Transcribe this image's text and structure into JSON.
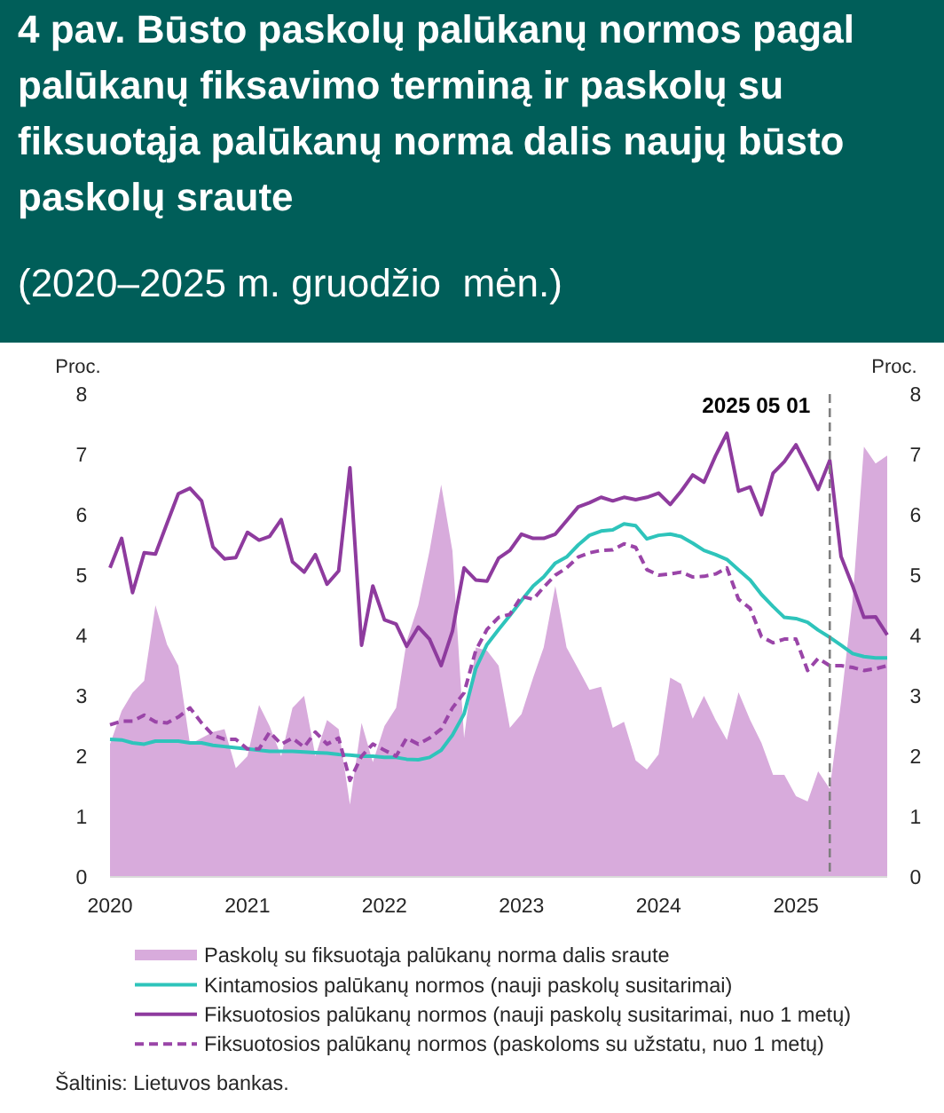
{
  "chart_data": {
    "type": "line",
    "title": "4 pav. Būsto paskolų palūkanų normos pagal palūkanų fiksavimo terminą ir paskolų su fiksuotąja palūkanų norma dalis naujų būsto paskolų sraute",
    "subtitle": "(2020–2025 m. gruodžio  mėn.)",
    "ylabel": "Proc.",
    "y2label": "Proc.",
    "x": [
      "2020-01",
      "2020-02",
      "2020-03",
      "2020-04",
      "2020-05",
      "2020-06",
      "2020-07",
      "2020-08",
      "2020-09",
      "2020-10",
      "2020-11",
      "2020-12",
      "2021-01",
      "2021-02",
      "2021-03",
      "2021-04",
      "2021-05",
      "2021-06",
      "2021-07",
      "2021-08",
      "2021-09",
      "2021-10",
      "2021-11",
      "2021-12",
      "2022-01",
      "2022-02",
      "2022-03",
      "2022-04",
      "2022-05",
      "2022-06",
      "2022-07",
      "2022-08",
      "2022-09",
      "2022-10",
      "2022-11",
      "2022-12",
      "2023-01",
      "2023-02",
      "2023-03",
      "2023-04",
      "2023-05",
      "2023-06",
      "2023-07",
      "2023-08",
      "2023-09",
      "2023-10",
      "2023-11",
      "2023-12",
      "2024-01",
      "2024-02",
      "2024-03",
      "2024-04",
      "2024-05",
      "2024-06",
      "2024-07",
      "2024-08",
      "2024-09",
      "2024-10",
      "2024-11",
      "2024-12",
      "2025-01",
      "2025-02",
      "2025-03",
      "2025-04",
      "2025-05",
      "2025-06",
      "2025-07",
      "2025-08",
      "2025-09"
    ],
    "series": [
      {
        "name": "Paskolų su fiksuotąja palūkanų norma dalis sraute",
        "type": "area",
        "color": "#d8abdc",
        "values": [
          2.2,
          2.75,
          3.05,
          3.25,
          4.5,
          3.85,
          3.5,
          2.2,
          2.3,
          2.4,
          2.45,
          1.8,
          2.0,
          2.85,
          2.5,
          2.0,
          2.8,
          3.0,
          2.0,
          2.6,
          2.45,
          1.2,
          2.55,
          1.9,
          2.5,
          2.8,
          3.9,
          4.5,
          5.4,
          6.5,
          5.4,
          2.3,
          3.8,
          3.75,
          3.5,
          2.47,
          2.7,
          3.3,
          3.8,
          4.82,
          3.8,
          3.45,
          3.1,
          3.15,
          2.47,
          2.57,
          1.93,
          1.78,
          2.03,
          3.3,
          3.2,
          2.62,
          3.0,
          2.6,
          2.27,
          3.06,
          2.6,
          2.22,
          1.69,
          1.69,
          1.34,
          1.25,
          1.75,
          1.46,
          2.9,
          4.6,
          7.13,
          6.85,
          6.98
        ]
      },
      {
        "name": "Kintamosios palūkanų normos (nauji paskolų susitarimai)",
        "color": "#2ec4bb",
        "values": [
          2.28,
          2.27,
          2.22,
          2.2,
          2.25,
          2.25,
          2.25,
          2.22,
          2.22,
          2.18,
          2.16,
          2.14,
          2.12,
          2.1,
          2.08,
          2.08,
          2.08,
          2.07,
          2.06,
          2.05,
          2.03,
          2.02,
          2.0,
          2.0,
          1.98,
          1.98,
          1.95,
          1.94,
          1.98,
          2.1,
          2.35,
          2.7,
          3.45,
          3.85,
          4.1,
          4.33,
          4.58,
          4.82,
          4.97,
          5.2,
          5.3,
          5.5,
          5.66,
          5.73,
          5.75,
          5.85,
          5.82,
          5.6,
          5.66,
          5.68,
          5.64,
          5.53,
          5.41,
          5.34,
          5.26,
          5.09,
          4.92,
          4.68,
          4.48,
          4.3,
          4.28,
          4.22,
          4.09,
          3.97,
          3.84,
          3.7,
          3.65,
          3.63,
          3.63
        ]
      },
      {
        "name": "Fiksuotosios palūkanų normos (nauji paskolų susitarimai, nuo 1 metų)",
        "color": "#8e3b9e",
        "values": [
          5.12,
          5.61,
          4.71,
          5.37,
          5.35,
          5.86,
          6.35,
          6.44,
          6.23,
          5.47,
          5.27,
          5.29,
          5.71,
          5.58,
          5.64,
          5.92,
          5.22,
          5.05,
          5.34,
          4.85,
          5.07,
          6.78,
          3.84,
          4.82,
          4.26,
          4.19,
          3.82,
          4.14,
          3.94,
          3.5,
          4.07,
          5.12,
          4.92,
          4.9,
          5.28,
          5.41,
          5.68,
          5.61,
          5.61,
          5.68,
          5.9,
          6.13,
          6.2,
          6.29,
          6.23,
          6.29,
          6.25,
          6.29,
          6.36,
          6.17,
          6.39,
          6.66,
          6.54,
          6.98,
          7.35,
          6.39,
          6.46,
          6.0,
          6.69,
          6.88,
          7.16,
          6.78,
          6.42,
          6.9,
          5.31,
          4.82,
          4.3,
          4.31,
          4.01
        ]
      },
      {
        "name": "Fiksuotosios palūkanų normos (paskoloms su užstatu, nuo 1 metų)",
        "line_style": "dashed",
        "color": "#9a45a8",
        "values": [
          2.52,
          2.58,
          2.58,
          2.68,
          2.57,
          2.55,
          2.65,
          2.8,
          2.55,
          2.35,
          2.28,
          2.28,
          2.12,
          2.12,
          2.4,
          2.2,
          2.3,
          2.15,
          2.4,
          2.2,
          2.3,
          1.6,
          2.0,
          2.2,
          2.1,
          2.0,
          2.3,
          2.2,
          2.3,
          2.45,
          2.8,
          3.05,
          3.75,
          4.1,
          4.3,
          4.35,
          4.65,
          4.6,
          4.8,
          5.0,
          5.12,
          5.3,
          5.37,
          5.41,
          5.42,
          5.52,
          5.46,
          5.09,
          5.0,
          5.02,
          5.05,
          4.97,
          4.98,
          5.02,
          5.12,
          4.6,
          4.45,
          3.98,
          3.88,
          3.94,
          3.94,
          3.42,
          3.62,
          3.5,
          3.5,
          3.47,
          3.42,
          3.45,
          3.5
        ]
      }
    ],
    "xlim": [
      "2020-01",
      "2025-09"
    ],
    "xticks": [
      "2020",
      "2021",
      "2022",
      "2023",
      "2024",
      "2025"
    ],
    "ylim": [
      0,
      8
    ],
    "yticks": [
      0,
      1,
      2,
      3,
      4,
      5,
      6,
      7,
      8
    ],
    "y2lim": [
      0,
      8
    ],
    "y2ticks": [
      0,
      1,
      2,
      3,
      4,
      5,
      6,
      7,
      8
    ],
    "ref_lines": [
      {
        "axis": "x",
        "value": "2025-04",
        "label": "2025 05 01",
        "color": "#7f7f7f",
        "line_style": "dashed"
      }
    ],
    "legend": "bottom",
    "line_style": "solid",
    "annotations": [
      "Šaltinis: Lietuvos bankas."
    ]
  }
}
